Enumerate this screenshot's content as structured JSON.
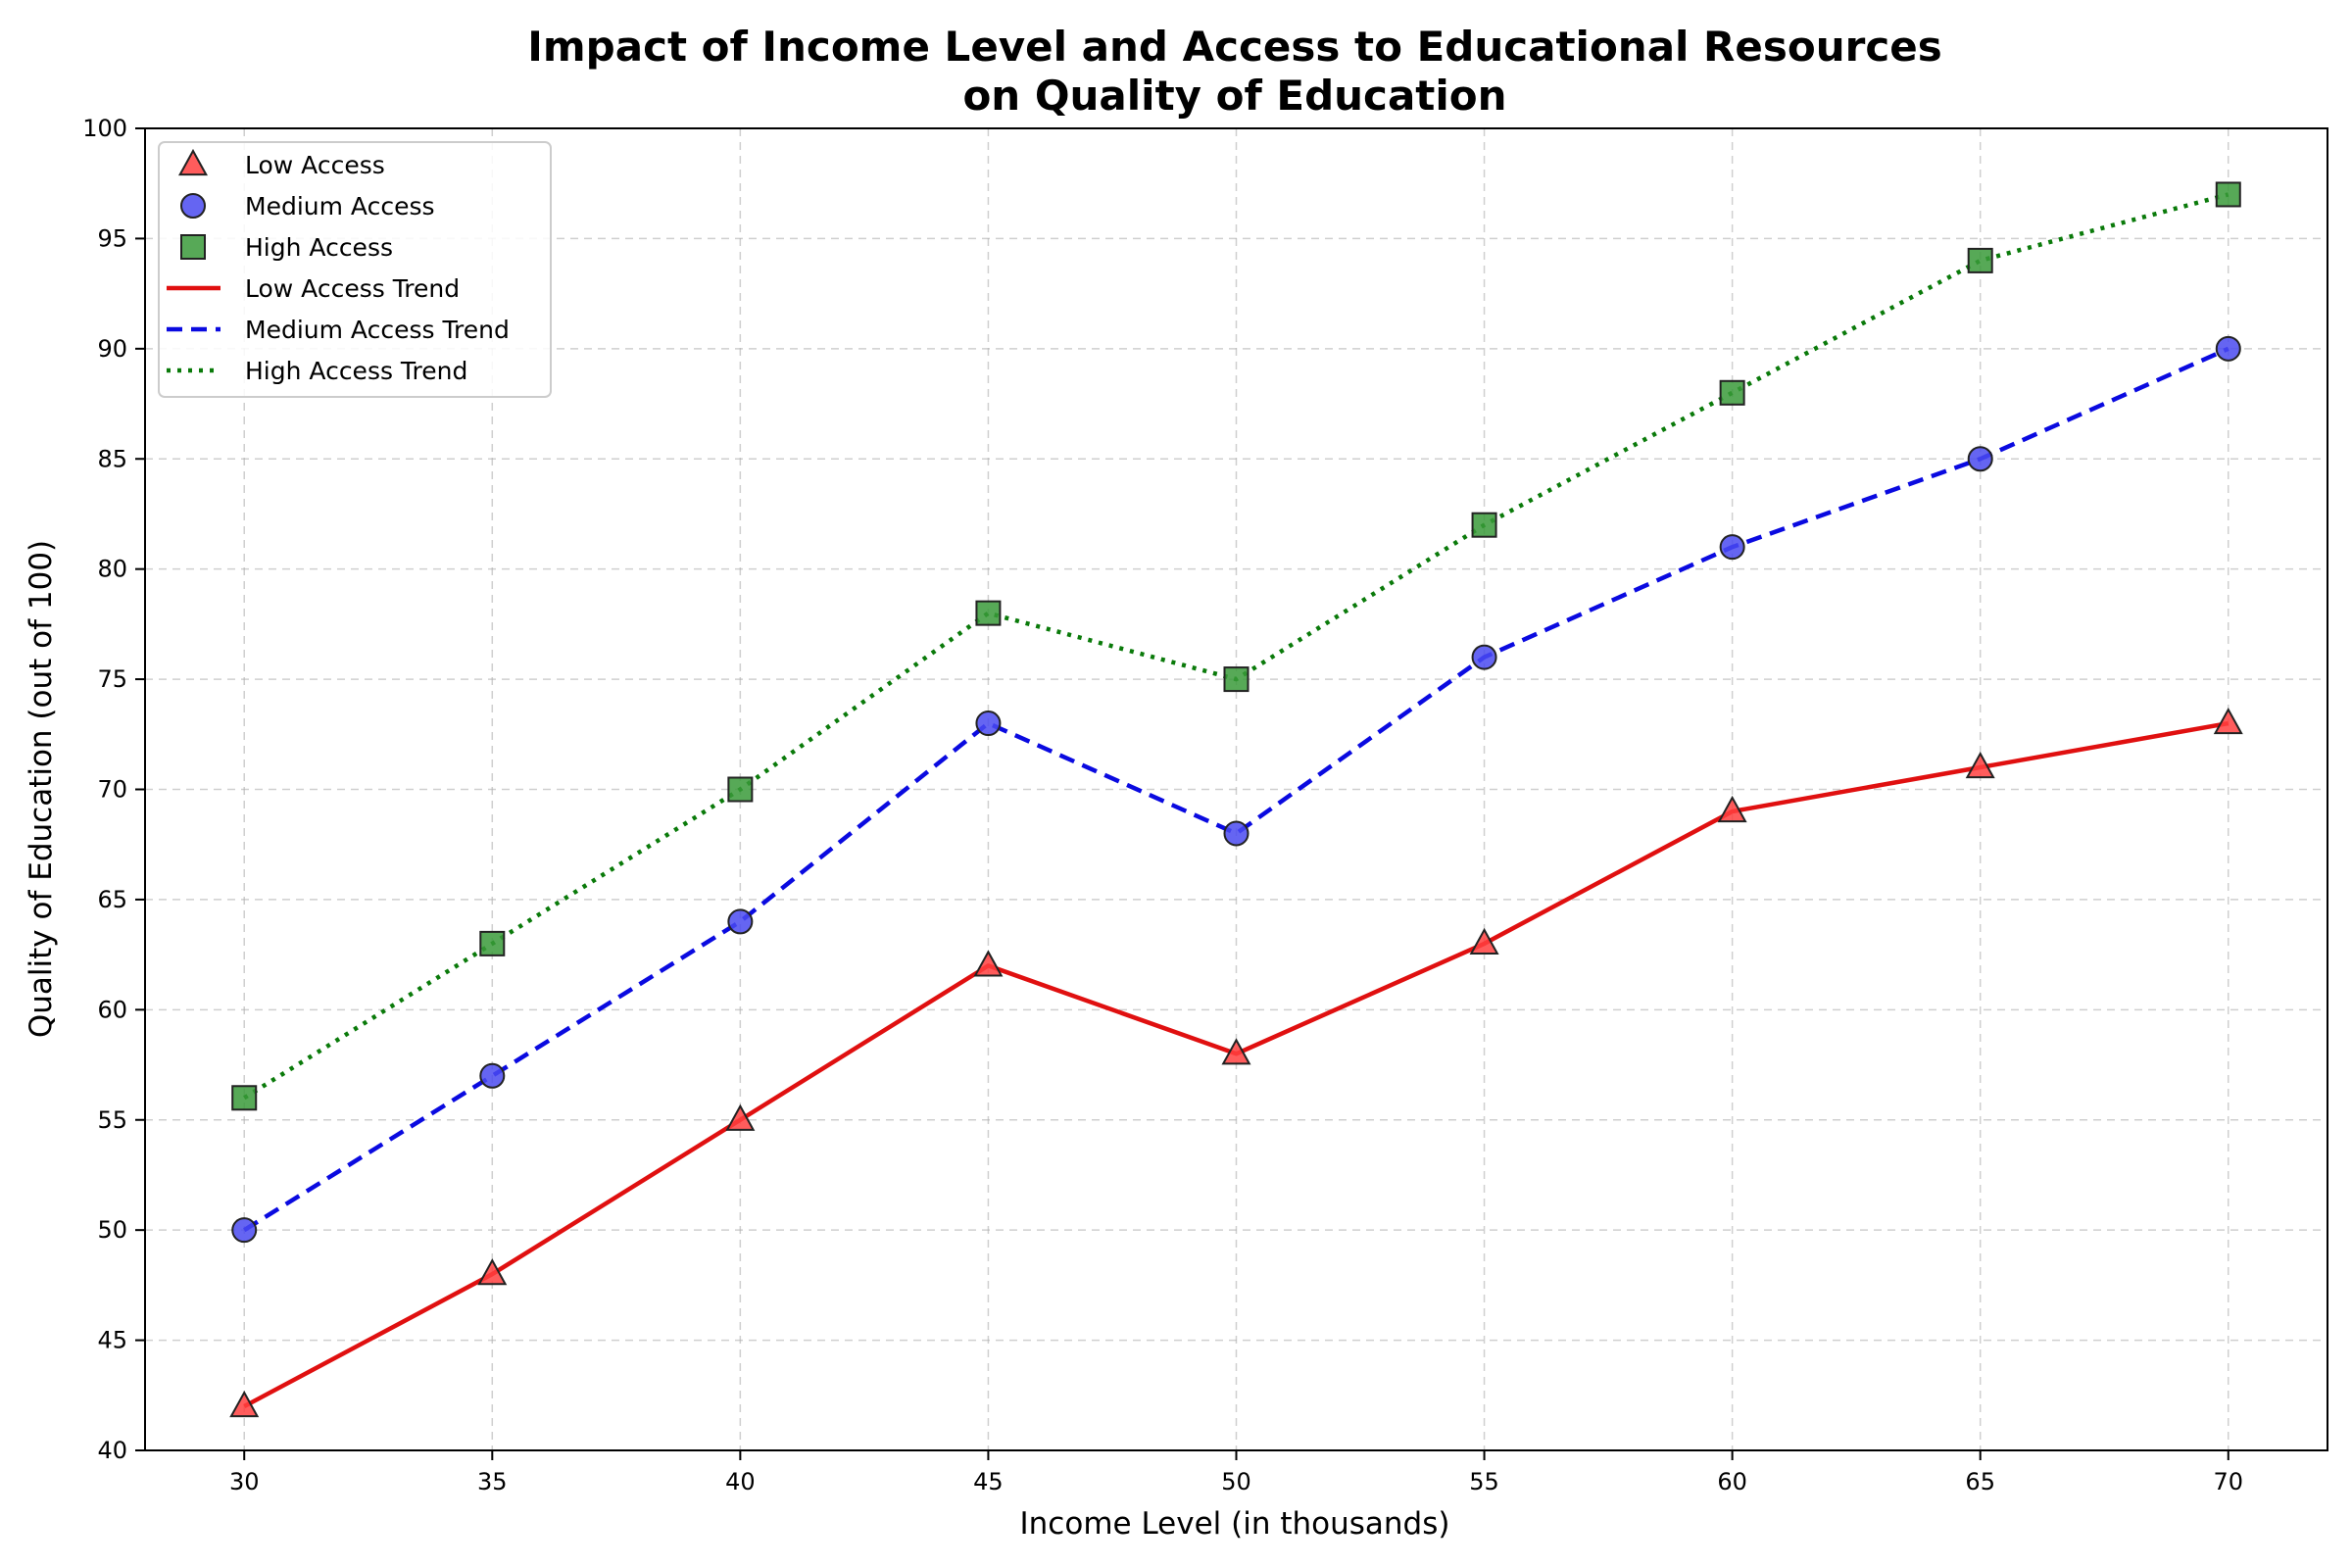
{
  "chart_data": {
    "type": "line",
    "title_line1": "Impact of Income Level and Access to Educational Resources",
    "title_line2": "on Quality of Education",
    "xlabel": "Income Level (in thousands)",
    "ylabel": "Quality of Education (out of 100)",
    "x": [
      30,
      35,
      40,
      45,
      50,
      55,
      60,
      65,
      70
    ],
    "xlim": [
      28,
      72
    ],
    "ylim": [
      40,
      100
    ],
    "xticks": [
      30,
      35,
      40,
      45,
      50,
      55,
      60,
      65,
      70
    ],
    "yticks": [
      40,
      45,
      50,
      55,
      60,
      65,
      70,
      75,
      80,
      85,
      90,
      95,
      100
    ],
    "grid": true,
    "legend_position": "top-left",
    "series": [
      {
        "name": "Low Access",
        "trend_name": "Low Access Trend",
        "values": [
          42,
          48,
          55,
          62,
          58,
          63,
          69,
          71,
          73
        ],
        "marker": "triangle",
        "marker_color": "#ff4040",
        "line_color": "#e01010",
        "line_style": "solid"
      },
      {
        "name": "Medium Access",
        "trend_name": "Medium Access Trend",
        "values": [
          50,
          57,
          64,
          73,
          68,
          76,
          81,
          85,
          90
        ],
        "marker": "circle",
        "marker_color": "#4a4af0",
        "line_color": "#0a0ae0",
        "line_style": "dashed"
      },
      {
        "name": "High Access",
        "trend_name": "High Access Trend",
        "values": [
          56,
          63,
          70,
          78,
          75,
          82,
          88,
          94,
          97
        ],
        "marker": "square",
        "marker_color": "#3a9a3a",
        "line_color": "#0a7a0a",
        "line_style": "dotted"
      }
    ]
  }
}
